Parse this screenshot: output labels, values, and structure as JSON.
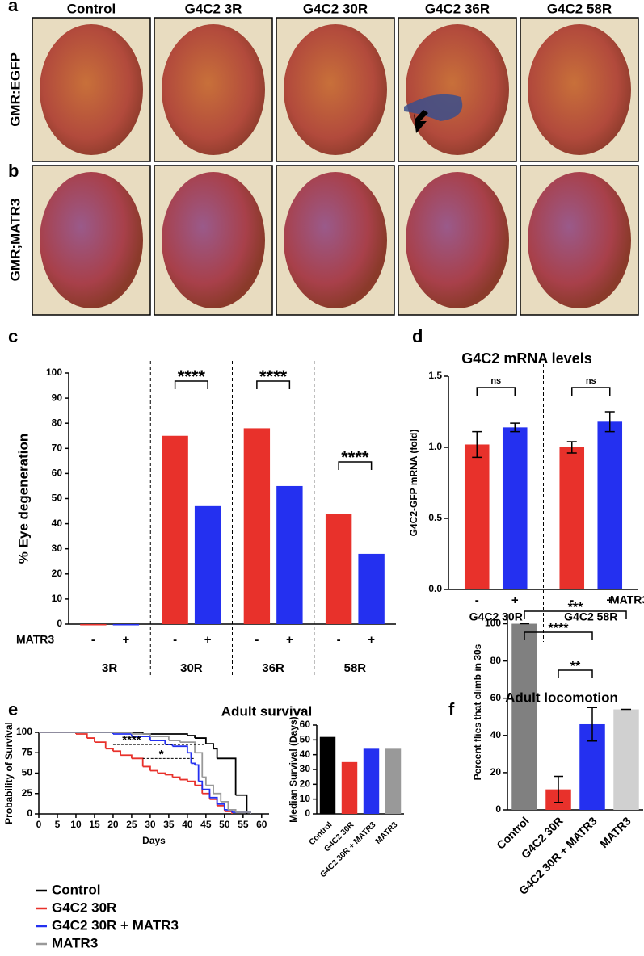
{
  "figure": {
    "panel_labels": [
      "a",
      "b",
      "c",
      "d",
      "e",
      "f"
    ],
    "eye_columns": [
      "Control",
      "G4C2 3R",
      "G4C2 30R",
      "G4C2 36R",
      "G4C2 58R"
    ],
    "eye_rows": [
      "GMR:EGFP",
      "GMR;MATR3"
    ]
  },
  "chart_data": [
    {
      "type": "bar",
      "ylabel": "% Eye degeneration",
      "row_label": "MATR3",
      "categories": [
        "-",
        "+",
        "-",
        "+",
        "-",
        "+",
        "-",
        "+"
      ],
      "groups": [
        "3R",
        "30R",
        "36R",
        "58R"
      ],
      "values": [
        0,
        0,
        75,
        47,
        78,
        55,
        44,
        28
      ],
      "colors": [
        "#e8312b",
        "#2430f0",
        "#e8312b",
        "#2430f0",
        "#e8312b",
        "#2430f0",
        "#e8312b",
        "#2430f0"
      ],
      "ylim": [
        0,
        100
      ],
      "yticks": [
        0,
        10,
        20,
        30,
        40,
        50,
        60,
        70,
        80,
        90,
        100
      ],
      "annotations": [
        "****",
        "****",
        "****"
      ]
    },
    {
      "type": "bar",
      "title": "G4C2 mRNA levels",
      "ylabel": "G4C2-GFP mRNA (fold)",
      "row_label": "MATR3",
      "categories": [
        "-",
        "+",
        "-",
        "+"
      ],
      "groups": [
        "G4C2 30R",
        "G4C2 58R"
      ],
      "values": [
        1.02,
        1.14,
        1.0,
        1.18
      ],
      "errors": [
        0.09,
        0.03,
        0.04,
        0.07
      ],
      "colors": [
        "#e8312b",
        "#2430f0",
        "#e8312b",
        "#2430f0"
      ],
      "ylim": [
        0,
        1.5
      ],
      "yticks": [
        {
          "value": 0,
          "label": "0.0"
        },
        {
          "value": 0.5,
          "label": "0.5"
        },
        {
          "value": 1,
          "label": "1.0"
        },
        {
          "value": 1.5,
          "label": "1.5"
        }
      ],
      "annotations": [
        "ns",
        "ns"
      ]
    },
    {
      "type": "line",
      "step": true,
      "title": "Adult survival",
      "xlabel": "Days",
      "ylabel": "Probability of Survival",
      "xlim": [
        0,
        62
      ],
      "xticks": [
        0,
        5,
        10,
        15,
        20,
        25,
        30,
        35,
        40,
        45,
        50,
        55,
        60
      ],
      "ylim": [
        0,
        100
      ],
      "yticks": [
        0,
        25,
        50,
        75,
        100
      ],
      "series": [
        {
          "name": "Control",
          "color": "#000000",
          "x": [
            0,
            28,
            40,
            42,
            45,
            47,
            48,
            53,
            56
          ],
          "y": [
            100,
            98,
            96,
            93,
            86,
            80,
            68,
            23,
            0
          ]
        },
        {
          "name": "G4C2 30R",
          "color": "#e8312b",
          "x": [
            0,
            10,
            13,
            15,
            18,
            20,
            22,
            25,
            28,
            30,
            32,
            34,
            36,
            38,
            40,
            42,
            44,
            46,
            48,
            50,
            52
          ],
          "y": [
            100,
            98,
            93,
            88,
            80,
            77,
            72,
            68,
            58,
            53,
            50,
            48,
            45,
            42,
            40,
            35,
            25,
            18,
            10,
            3,
            0
          ]
        },
        {
          "name": "G4C2 30R + MATR3",
          "color": "#2430f0",
          "x": [
            0,
            20,
            25,
            30,
            34,
            36,
            40,
            41,
            42,
            43,
            44,
            46,
            48,
            50,
            52,
            57
          ],
          "y": [
            100,
            98,
            95,
            90,
            85,
            83,
            75,
            62,
            60,
            40,
            30,
            20,
            12,
            5,
            2,
            0
          ]
        },
        {
          "name": "MATR3",
          "color": "#999999",
          "x": [
            0,
            25,
            30,
            35,
            38,
            42,
            44,
            45,
            47,
            49,
            51,
            53,
            57
          ],
          "y": [
            100,
            98,
            95,
            90,
            88,
            75,
            45,
            35,
            25,
            15,
            5,
            2,
            0
          ]
        }
      ],
      "annotations": [
        "****",
        "*"
      ]
    },
    {
      "type": "bar",
      "ylabel": "Median Survival (Days)",
      "categories": [
        "Control",
        "G4C2 30R",
        "G4C2 30R + MATR3",
        "MATR3"
      ],
      "values": [
        52,
        35,
        44,
        44
      ],
      "colors": [
        "#000000",
        "#e8312b",
        "#2430f0",
        "#999999"
      ],
      "ylim": [
        0,
        60
      ],
      "yticks": [
        0,
        10,
        20,
        30,
        40,
        50,
        60
      ]
    },
    {
      "type": "bar",
      "title": "Adult locomotion",
      "ylabel": "Percent flies that climb in 30s",
      "categories": [
        "Control",
        "G4C2 30R",
        "G4C2 30R + MATR3",
        "MATR3"
      ],
      "values": [
        100,
        11,
        46,
        54
      ],
      "errors": [
        0,
        7,
        9,
        0
      ],
      "colors": [
        "#808080",
        "#e8312b",
        "#2430f0",
        "#d0d0d0"
      ],
      "ylim": [
        0,
        105
      ],
      "yticks": [
        0,
        20,
        40,
        60,
        80,
        100
      ],
      "annotations": [
        "***",
        "****",
        "**"
      ]
    }
  ]
}
